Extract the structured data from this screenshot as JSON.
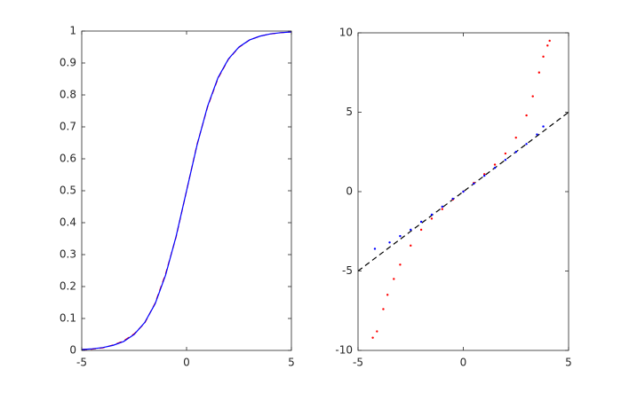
{
  "chart_data": [
    {
      "type": "line",
      "x": [
        -5,
        -4.5,
        -4,
        -3.5,
        -3,
        -2.5,
        -2,
        -1.5,
        -1,
        -0.5,
        0,
        0.5,
        1,
        1.5,
        2,
        2.5,
        3,
        3.5,
        4,
        4.5,
        5
      ],
      "series": [
        {
          "color": "#ff0000",
          "style": "dashed",
          "values": [
            0.003,
            0.004,
            0.008,
            0.017,
            0.03,
            0.052,
            0.085,
            0.148,
            0.24,
            0.355,
            0.5,
            0.645,
            0.762,
            0.852,
            0.912,
            0.949,
            0.972,
            0.984,
            0.991,
            0.995,
            0.997
          ]
        },
        {
          "color": "#0000ff",
          "style": "solid",
          "values": [
            0.0028,
            0.005,
            0.0089,
            0.016,
            0.028,
            0.05,
            0.087,
            0.146,
            0.236,
            0.357,
            0.5,
            0.643,
            0.764,
            0.854,
            0.913,
            0.95,
            0.972,
            0.984,
            0.9911,
            0.995,
            0.9972
          ]
        }
      ],
      "xlim": [
        -5,
        5
      ],
      "xticks": [
        -5,
        0,
        5
      ],
      "ylim": [
        0,
        1
      ],
      "yticks": [
        0,
        0.1,
        0.2,
        0.3,
        0.4,
        0.5,
        0.6,
        0.7,
        0.8,
        0.9,
        1
      ]
    },
    {
      "type": "scatter",
      "series": [
        {
          "color": "#ff0000",
          "x": [
            -4.3,
            -4.1,
            -3.8,
            -3.6,
            -3.3,
            -3,
            -2.5,
            -2,
            -1.5,
            -1,
            -0.5,
            0,
            0.5,
            1,
            1.5,
            2,
            2.5,
            3,
            3.3,
            3.6,
            3.8,
            4,
            4.1
          ],
          "values": [
            -9.2,
            -8.8,
            -7.4,
            -6.5,
            -5.5,
            -4.6,
            -3.4,
            -2.4,
            -1.7,
            -1.1,
            -0.5,
            0,
            0.55,
            1.1,
            1.7,
            2.4,
            3.4,
            4.8,
            6,
            7.5,
            8.5,
            9.2,
            9.5
          ]
        },
        {
          "color": "#0000ff",
          "x": [
            -4.2,
            -3.5,
            -3,
            -2.5,
            -2,
            -1.5,
            -1,
            -0.5,
            0,
            0.5,
            1,
            1.5,
            2,
            2.5,
            3,
            3.5,
            3.8
          ],
          "values": [
            -3.6,
            -3.2,
            -2.8,
            -2.4,
            -1.9,
            -1.45,
            -0.95,
            -0.45,
            0,
            0.5,
            1,
            1.5,
            2,
            2.5,
            3,
            3.6,
            4.1
          ]
        }
      ],
      "ref_line": {
        "color": "#000000",
        "style": "dashed",
        "x": [
          -5,
          5
        ],
        "values": [
          -5,
          5
        ]
      },
      "xlim": [
        -5,
        5
      ],
      "xticks": [
        -5,
        0,
        5
      ],
      "ylim": [
        -10,
        10
      ],
      "yticks": [
        -10,
        -5,
        0,
        5,
        10
      ]
    }
  ]
}
